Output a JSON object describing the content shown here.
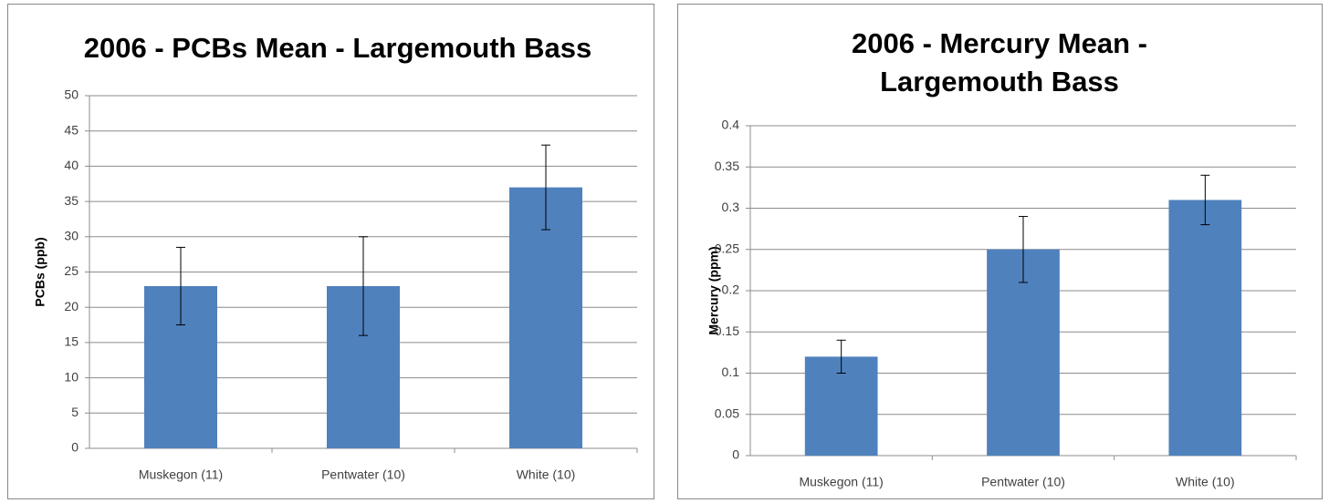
{
  "chart_data": [
    {
      "type": "bar",
      "title": "2006 - PCBs Mean - Largemouth Bass",
      "y_label": "PCBs (ppb)",
      "categories": [
        "Muskegon (11)",
        "Pentwater (10)",
        "White (10)"
      ],
      "values": [
        23,
        23,
        37
      ],
      "errors": [
        5.5,
        7,
        6
      ],
      "color": "#4f81bd",
      "ylim": [
        0,
        50
      ],
      "yticks": [
        0,
        5,
        10,
        15,
        20,
        25,
        30,
        35,
        40,
        45,
        50
      ],
      "grid": true
    },
    {
      "type": "bar",
      "title": [
        "2006 - Mercury Mean -",
        "Largemouth Bass"
      ],
      "y_label": "Mercury (ppm)",
      "categories": [
        "Muskegon (11)",
        "Pentwater (10)",
        "White (10)"
      ],
      "values": [
        0.12,
        0.25,
        0.31
      ],
      "errors": [
        0.02,
        0.04,
        0.03
      ],
      "color": "#4f81bd",
      "ylim": [
        0,
        0.4
      ],
      "yticks": [
        0,
        0.05,
        0.1,
        0.15,
        0.2,
        0.25,
        0.3,
        0.35,
        0.4
      ],
      "grid": true
    }
  ]
}
